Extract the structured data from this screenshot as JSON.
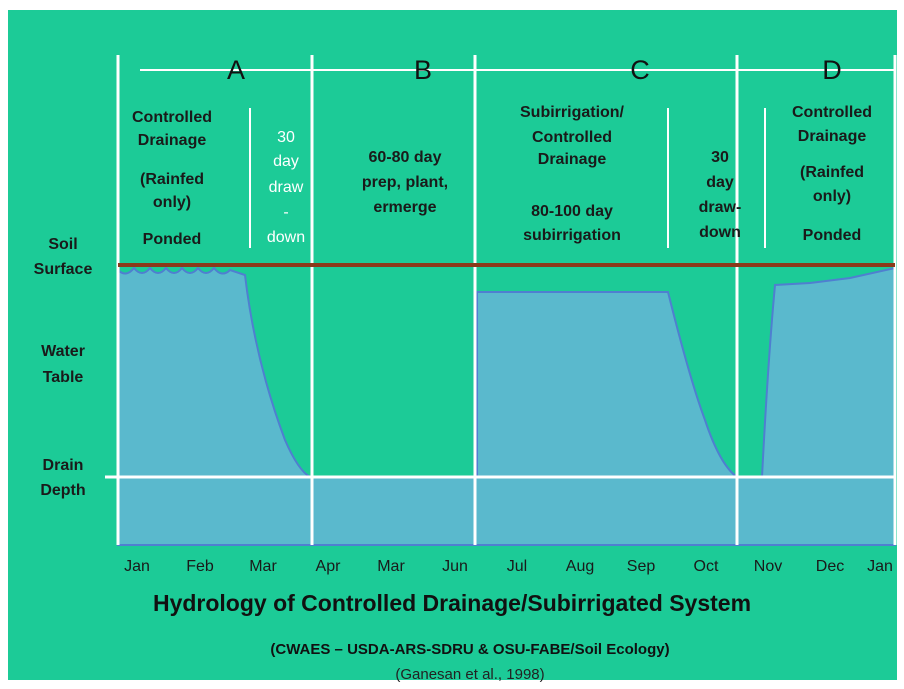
{
  "periods": [
    "A",
    "B",
    "C",
    "D"
  ],
  "notes": [
    {
      "lines": [
        "Controlled",
        "Drainage",
        "(Rainfed",
        "only)",
        "Ponded"
      ]
    },
    {
      "lines": [
        "30",
        "day",
        "draw",
        "-",
        "down"
      ]
    },
    {
      "lines": [
        "60-80 day",
        "prep, plant,",
        "ermerge"
      ]
    },
    {
      "lines": [
        "Subirrigation/",
        "Controlled",
        "Drainage",
        "80-100 day",
        "subirrigation"
      ]
    },
    {
      "lines": [
        "30",
        "day",
        "draw-",
        "down"
      ]
    },
    {
      "lines": [
        "Controlled",
        "Drainage",
        "(Rainfed",
        "only)",
        "Ponded"
      ]
    }
  ],
  "levels": [
    {
      "lines": [
        "Soil",
        "Surface"
      ]
    },
    {
      "lines": [
        "Water",
        "Table"
      ]
    },
    {
      "lines": [
        "Drain",
        "Depth"
      ]
    }
  ],
  "months": [
    "Jan",
    "Feb",
    "Mar",
    "Apr",
    "Mar",
    "Jun",
    "Jul",
    "Aug",
    "Sep",
    "Oct",
    "Nov",
    "Dec",
    "Jan"
  ],
  "title": "Hydrology of Controlled Drainage/Subirrigated System",
  "subtitle": "(CWAES – USDA-ARS-SDRU & OSU-FABE/Soil Ecology)",
  "citation": "(Ganesan et al., 1998)"
}
